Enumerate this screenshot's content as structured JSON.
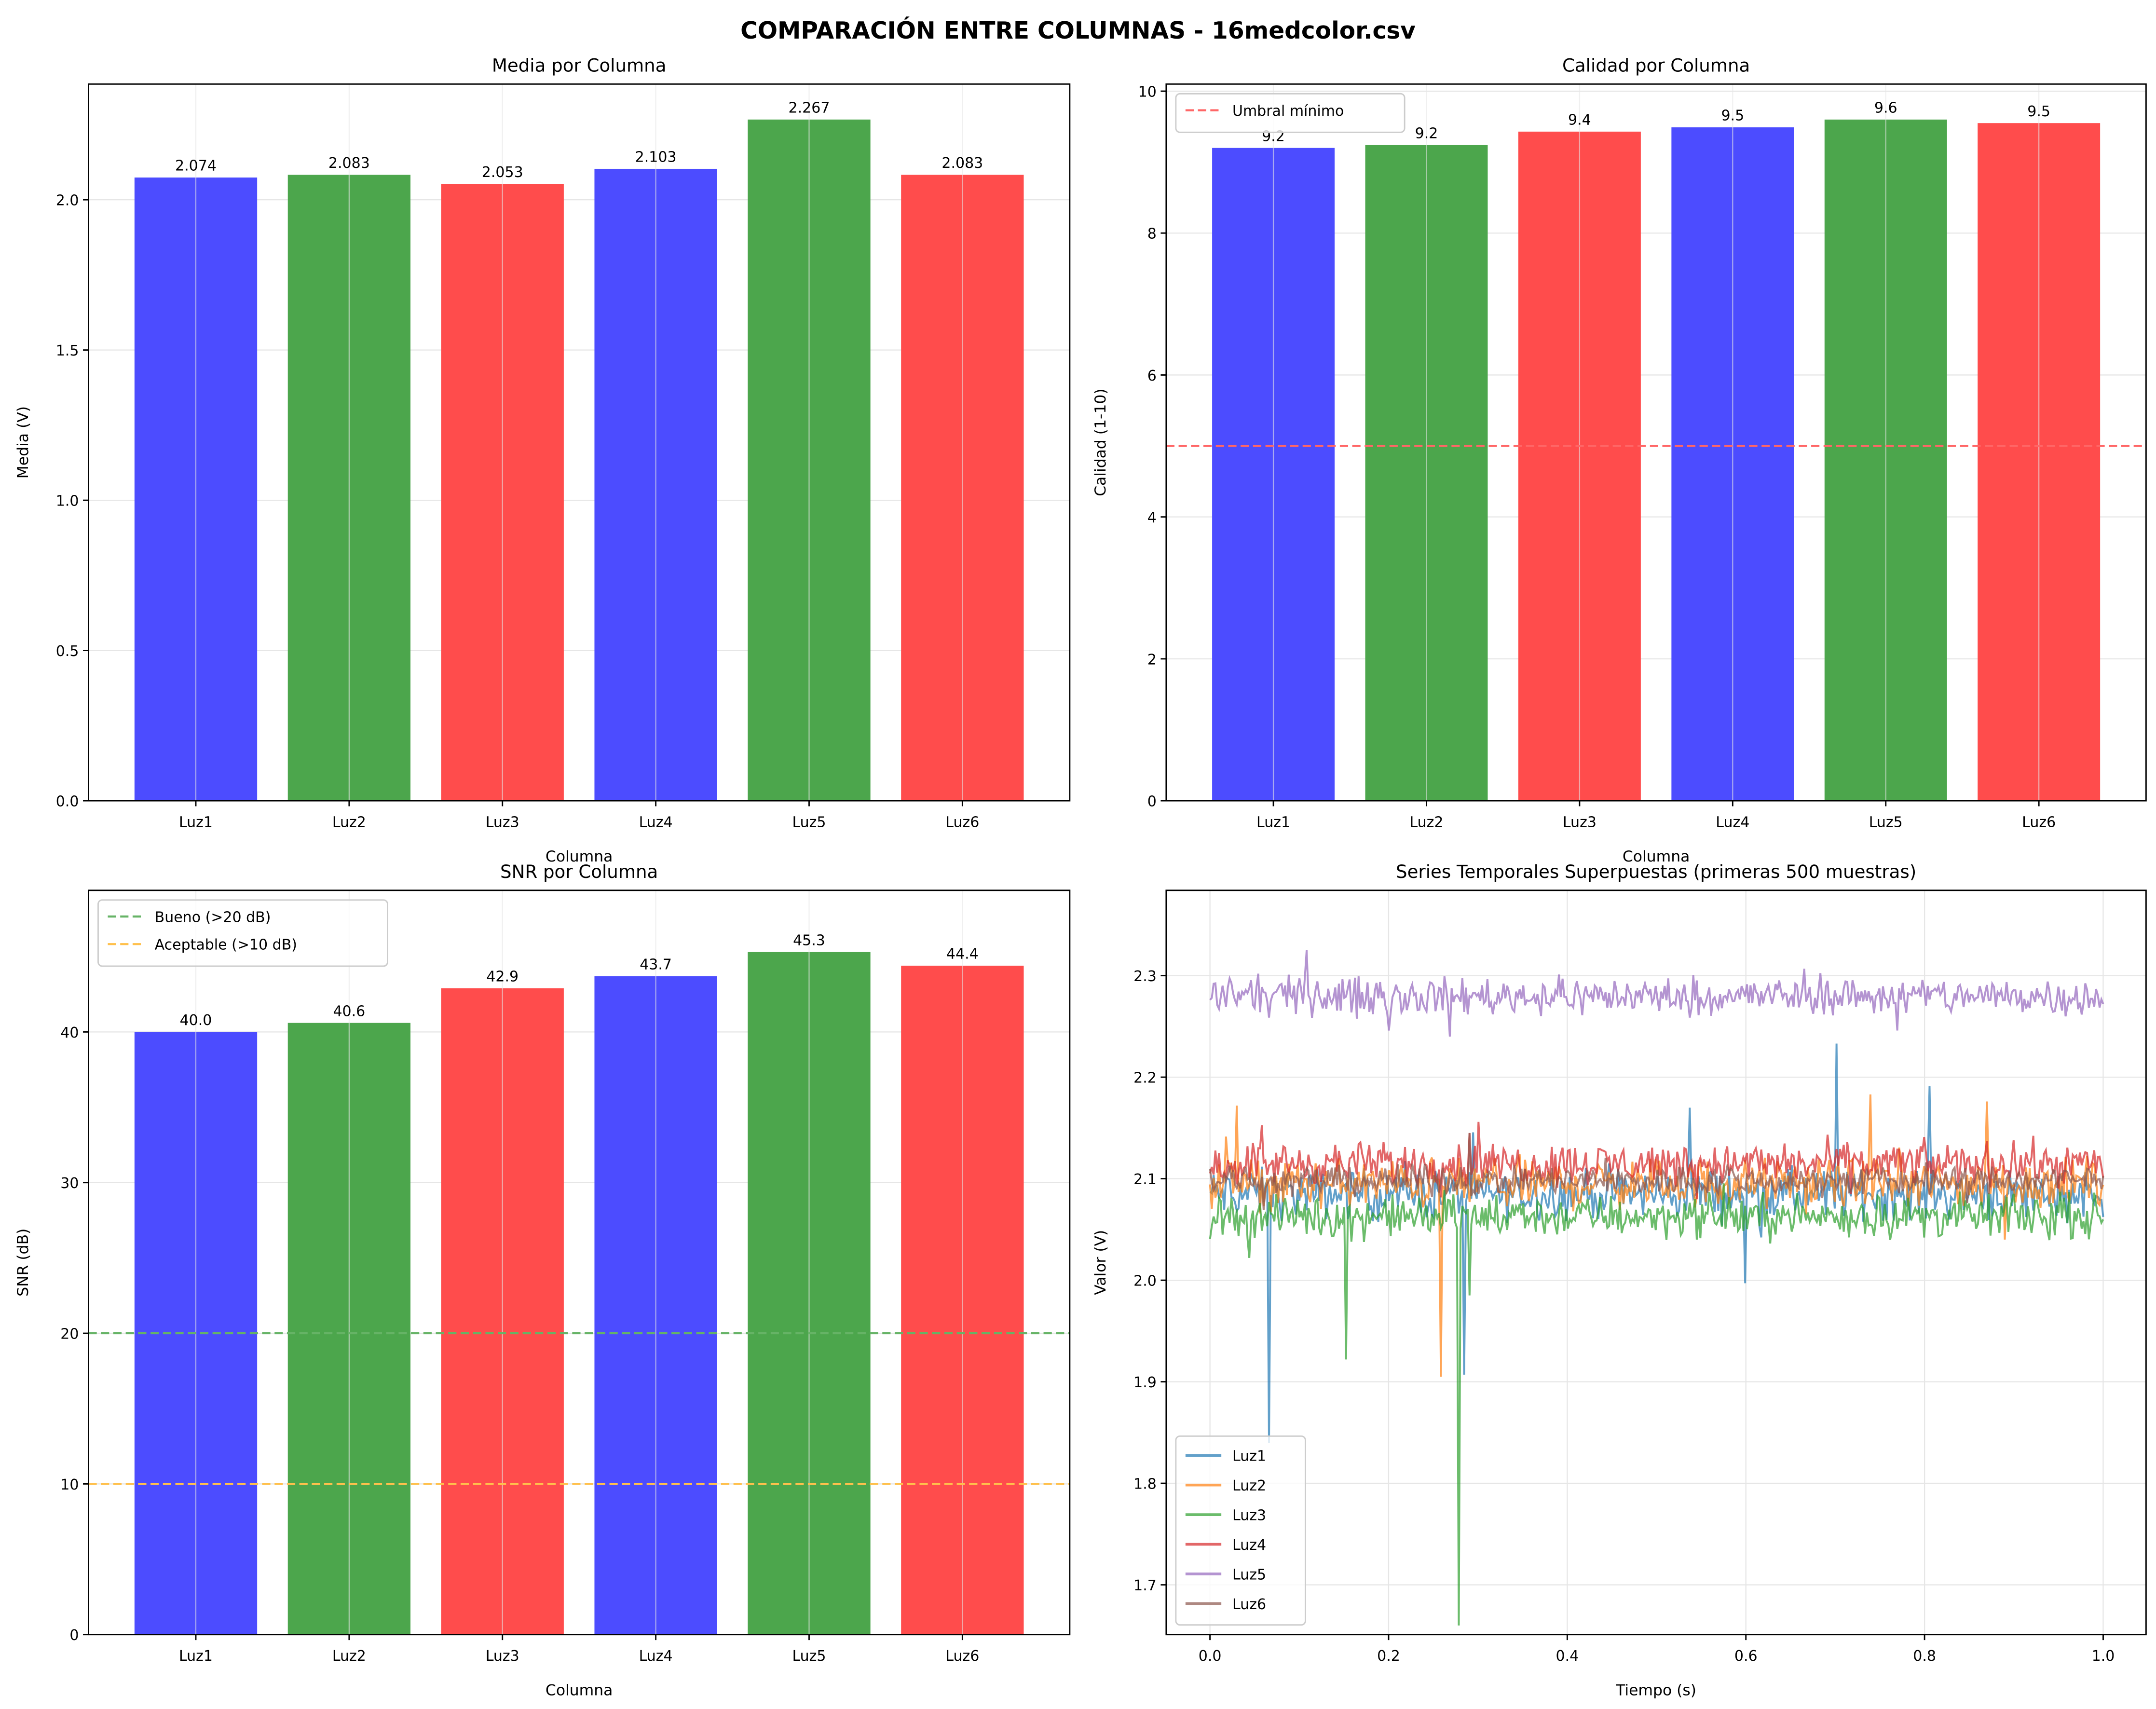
{
  "title": "COMPARACIÓN ENTRE COLUMNAS - 16medcolor.csv",
  "chart_data": [
    {
      "type": "bar",
      "title": "Media por Columna",
      "xlabel": "Columna",
      "ylabel": "Media (V)",
      "categories": [
        "Luz1",
        "Luz2",
        "Luz3",
        "Luz4",
        "Luz5",
        "Luz6"
      ],
      "values": [
        2.074,
        2.083,
        2.053,
        2.103,
        2.267,
        2.083
      ],
      "labels": [
        "2.074",
        "2.083",
        "2.053",
        "2.103",
        "2.267",
        "2.083"
      ],
      "colors": [
        "#4c4cff",
        "#4ca64c",
        "#ff4c4c",
        "#4c4cff",
        "#4ca64c",
        "#ff4c4c"
      ],
      "ylim": [
        0,
        2.385
      ],
      "yticks": [
        0,
        0.5,
        1.0,
        1.5,
        2.0
      ],
      "ytick_labels": [
        "0.0",
        "0.5",
        "1.0",
        "1.5",
        "2.0"
      ],
      "grid": true
    },
    {
      "type": "bar",
      "title": "Calidad por Columna",
      "xlabel": "Columna",
      "ylabel": "Calidad (1-10)",
      "categories": [
        "Luz1",
        "Luz2",
        "Luz3",
        "Luz4",
        "Luz5",
        "Luz6"
      ],
      "values": [
        9.2,
        9.24,
        9.43,
        9.49,
        9.6,
        9.55
      ],
      "labels": [
        "9.2",
        "9.2",
        "9.4",
        "9.5",
        "9.6",
        "9.5"
      ],
      "colors": [
        "#4c4cff",
        "#4ca64c",
        "#ff4c4c",
        "#4c4cff",
        "#4ca64c",
        "#ff4c4c"
      ],
      "ylim": [
        0,
        10.1
      ],
      "yticks": [
        0,
        2,
        4,
        6,
        8,
        10
      ],
      "ytick_labels": [
        "0",
        "2",
        "4",
        "6",
        "8",
        "10"
      ],
      "hlines": [
        {
          "y": 5,
          "color": "#ff6666",
          "label": "Umbral mínimo"
        }
      ],
      "legend": "top-left",
      "grid": true
    },
    {
      "type": "bar",
      "title": "SNR por Columna",
      "xlabel": "Columna",
      "ylabel": "SNR (dB)",
      "categories": [
        "Luz1",
        "Luz2",
        "Luz3",
        "Luz4",
        "Luz5",
        "Luz6"
      ],
      "values": [
        40.0,
        40.6,
        42.9,
        43.7,
        45.3,
        44.4
      ],
      "labels": [
        "40.0",
        "40.6",
        "42.9",
        "43.7",
        "45.3",
        "44.4"
      ],
      "colors": [
        "#4c4cff",
        "#4ca64c",
        "#ff4c4c",
        "#4c4cff",
        "#4ca64c",
        "#ff4c4c"
      ],
      "ylim": [
        0,
        49.4
      ],
      "yticks": [
        0,
        10,
        20,
        30,
        40
      ],
      "ytick_labels": [
        "0",
        "10",
        "20",
        "30",
        "40"
      ],
      "hlines": [
        {
          "y": 20,
          "color": "#66b366",
          "label": "Bueno (>20 dB)"
        },
        {
          "y": 10,
          "color": "#ffc04c",
          "label": "Aceptable (>10 dB)"
        }
      ],
      "legend": "top-left",
      "grid": true
    },
    {
      "type": "line",
      "title": "Series Temporales Superpuestas (primeras 500 muestras)",
      "xlabel": "Tiempo (s)",
      "ylabel": "Valor (V)",
      "xlim": [
        -0.049,
        1.048
      ],
      "ylim": [
        1.651,
        2.384
      ],
      "xticks": [
        0,
        0.2,
        0.4,
        0.6,
        0.8,
        1.0
      ],
      "xtick_labels": [
        "0.0",
        "0.2",
        "0.4",
        "0.6",
        "0.8",
        "1.0"
      ],
      "yticks": [
        1.7,
        1.8,
        1.9,
        2.0,
        2.1,
        2.2,
        2.3
      ],
      "ytick_labels": [
        "1.7",
        "1.8",
        "1.9",
        "2.0",
        "2.1",
        "2.2",
        "2.3"
      ],
      "n_samples": 500,
      "legend": "lower-left",
      "grid": true,
      "series": [
        {
          "name": "Luz1",
          "color": "#1f77b4",
          "mean": 2.085,
          "noise": 0.012,
          "spikes": [
            [
              0.066,
              1.84
            ],
            [
              0.285,
              1.907
            ],
            [
              0.6,
              1.997
            ],
            [
              0.702,
              2.233
            ],
            [
              0.806,
              2.191
            ],
            [
              0.537,
              2.17
            ]
          ]
        },
        {
          "name": "Luz2",
          "color": "#ff7f0e",
          "mean": 2.095,
          "noise": 0.012,
          "spikes": [
            [
              0.03,
              2.172
            ],
            [
              0.258,
              1.905
            ],
            [
              0.74,
              2.183
            ],
            [
              0.87,
              2.176
            ],
            [
              0.89,
              2.04
            ]
          ]
        },
        {
          "name": "Luz3",
          "color": "#2ca02c",
          "mean": 2.063,
          "noise": 0.01,
          "spikes": [
            [
              0.153,
              1.922
            ],
            [
              0.278,
              1.66
            ],
            [
              0.29,
              1.985
            ],
            [
              0.045,
              2.022
            ]
          ]
        },
        {
          "name": "Luz4",
          "color": "#d62728",
          "mean": 2.115,
          "noise": 0.01,
          "spikes": [
            [
              0.3,
              2.156
            ],
            [
              0.29,
              2.145
            ]
          ]
        },
        {
          "name": "Luz5",
          "color": "#9467bd",
          "mean": 2.28,
          "noise": 0.009,
          "spikes": [
            [
              0.108,
              2.325
            ],
            [
              0.268,
              2.24
            ],
            [
              0.2,
              2.246
            ],
            [
              0.77,
              2.246
            ]
          ]
        },
        {
          "name": "Luz6",
          "color": "#8c564b",
          "mean": 2.098,
          "noise": 0.007,
          "spikes": [
            [
              0.29,
              2.145
            ]
          ]
        }
      ]
    }
  ]
}
